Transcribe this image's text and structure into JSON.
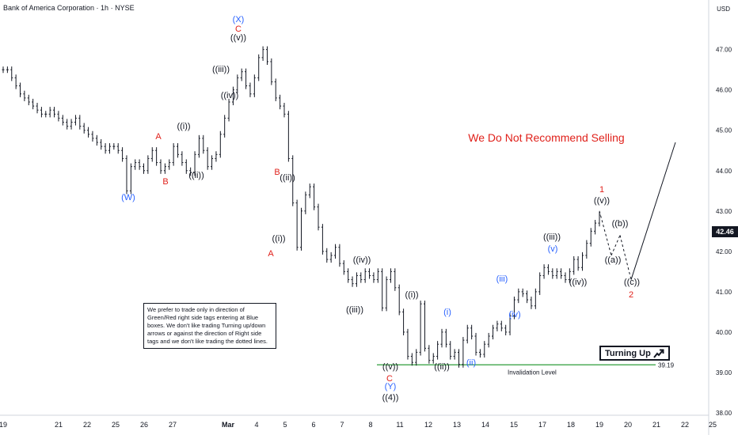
{
  "header": {
    "title": "Bank of America Corporation · 1h · NYSE",
    "currency": "USD"
  },
  "price_tag": "42.46",
  "note": "We prefer to trade only in direction of Green/Red right side tags entering at Blue boxes. We don't like trading Turning up/down arrows or against the direction of Right side tags and we don't like trading the dotted lines.",
  "headline": "We Do Not Recommend Selling",
  "turning_label": "Turning Up",
  "invalidation": {
    "label": "Invalidation Level",
    "value": "39.19",
    "color": "#2e9d3a"
  },
  "colors": {
    "red": "#e0211b",
    "blue": "#2962ff",
    "black": "#131722",
    "axis": "#787b86"
  },
  "chart_data": {
    "type": "line",
    "title": "Bank of America Corporation · 1h · NYSE",
    "ylim": [
      38.0,
      47.6
    ],
    "y_ticks": [
      "38.00",
      "39.00",
      "40.00",
      "41.00",
      "42.00",
      "43.00",
      "44.00",
      "45.00",
      "46.00",
      "47.00"
    ],
    "x_ticks": [
      "19",
      "21",
      "22",
      "25",
      "26",
      "27",
      "Mar",
      "4",
      "5",
      "6",
      "7",
      "8",
      "11",
      "12",
      "13",
      "14",
      "15",
      "17",
      "18",
      "19",
      "20",
      "21",
      "22",
      "25",
      "26"
    ],
    "series": [
      {
        "values": [
          46.5,
          46.5,
          46.3,
          46.1,
          45.9,
          45.8,
          45.7,
          45.6,
          45.5,
          45.4,
          45.4,
          45.5,
          45.4,
          45.3,
          45.2,
          45.1,
          45.2,
          45.3,
          45.1,
          45.0,
          44.9,
          44.8,
          44.7,
          44.6,
          44.5,
          44.6,
          44.6,
          44.5,
          44.3,
          43.5,
          44.1,
          44.2,
          44.1,
          44.0,
          44.3,
          44.5,
          44.2,
          44.0,
          44.1,
          44.2,
          44.6,
          44.4,
          44.2,
          44.0,
          43.95,
          44.4,
          44.8,
          44.5,
          44.1,
          44.3,
          44.4,
          44.9,
          45.3,
          45.7,
          46.0,
          46.3,
          46.45,
          46.1,
          45.9,
          46.3,
          46.8,
          47.0,
          46.7,
          46.2,
          45.8,
          45.6,
          45.4,
          44.3,
          43.2,
          42.1,
          43.0,
          43.4,
          43.6,
          43.1,
          42.6,
          42.0,
          41.8,
          41.9,
          42.1,
          41.7,
          41.5,
          41.3,
          41.2,
          41.4,
          41.3,
          41.5,
          41.4,
          41.3,
          41.5,
          40.6,
          41.3,
          41.5,
          41.1,
          40.5,
          40.0,
          39.4,
          39.25,
          39.5,
          40.7,
          39.6,
          39.3,
          39.4,
          39.7,
          40.0,
          39.7,
          39.4,
          39.5,
          39.2,
          39.8,
          40.1,
          39.9,
          39.5,
          39.45,
          39.7,
          39.9,
          40.1,
          40.2,
          40.1,
          40.0,
          40.4,
          40.8,
          41.0,
          40.95,
          40.8,
          40.65,
          41.0,
          41.4,
          41.6,
          41.5,
          41.4,
          41.5,
          41.4,
          41.3,
          41.5,
          41.8,
          41.6,
          41.9,
          42.2,
          42.5,
          42.7,
          42.9
        ]
      }
    ],
    "projection": {
      "points": [
        "43.0",
        "41.9",
        "42.4",
        "41.3",
        "44.7"
      ],
      "labels": [
        "((a))",
        "((b))",
        "((c))",
        "2"
      ]
    },
    "annotations": [
      {
        "text": "(W)",
        "color": "blue"
      },
      {
        "text": "A",
        "color": "red"
      },
      {
        "text": "B",
        "color": "red"
      },
      {
        "text": "((i))",
        "color": "black"
      },
      {
        "text": "((ii))",
        "color": "black"
      },
      {
        "text": "((iii))",
        "color": "black"
      },
      {
        "text": "((iv))",
        "color": "black"
      },
      {
        "text": "((v))",
        "color": "black"
      },
      {
        "text": "C",
        "color": "red"
      },
      {
        "text": "(X)",
        "color": "blue"
      },
      {
        "text": "B",
        "color": "red"
      },
      {
        "text": "((ii))",
        "color": "black"
      },
      {
        "text": "((i))",
        "color": "black"
      },
      {
        "text": "A",
        "color": "red"
      },
      {
        "text": "((iv))",
        "color": "black"
      },
      {
        "text": "((iii))",
        "color": "black"
      },
      {
        "text": "((i))",
        "color": "black"
      },
      {
        "text": "((v))",
        "color": "black"
      },
      {
        "text": "C",
        "color": "red"
      },
      {
        "text": "(Y)",
        "color": "blue"
      },
      {
        "text": "((4))",
        "color": "black"
      },
      {
        "text": "((ii))",
        "color": "black"
      },
      {
        "text": "(i)",
        "color": "blue"
      },
      {
        "text": "(ii)",
        "color": "blue"
      },
      {
        "text": "(iii)",
        "color": "blue"
      },
      {
        "text": "(iv)",
        "color": "blue"
      },
      {
        "text": "((iii))",
        "color": "black"
      },
      {
        "text": "(v)",
        "color": "blue"
      },
      {
        "text": "((iv))",
        "color": "black"
      },
      {
        "text": "1",
        "color": "red"
      },
      {
        "text": "((v))",
        "color": "black"
      },
      {
        "text": "((b))",
        "color": "black"
      },
      {
        "text": "((a))",
        "color": "black"
      },
      {
        "text": "((c))",
        "color": "black"
      },
      {
        "text": "2",
        "color": "red"
      }
    ]
  }
}
